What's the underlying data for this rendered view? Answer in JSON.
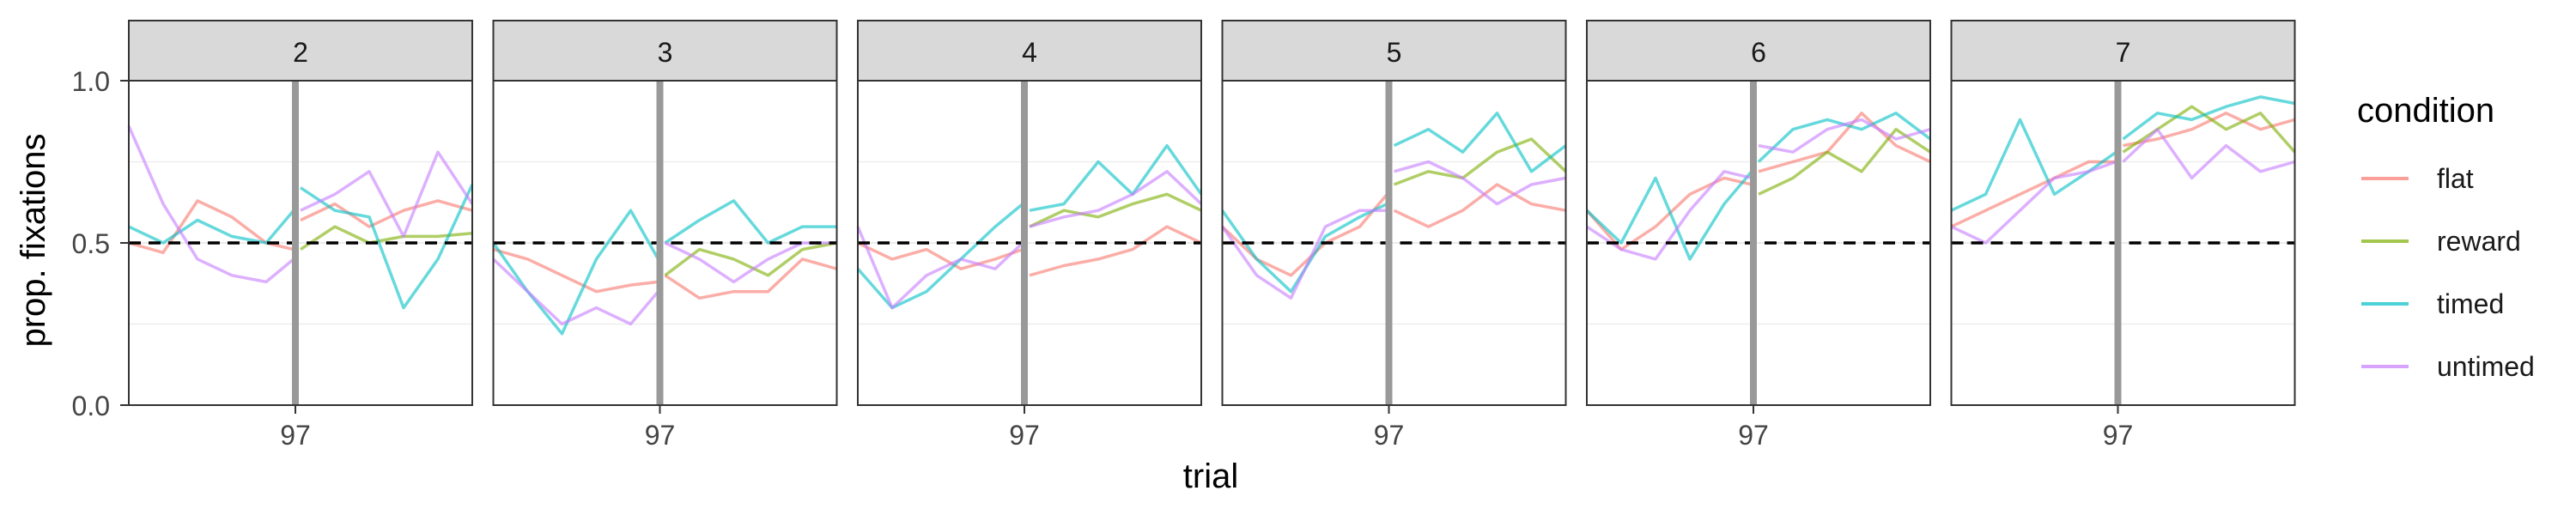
{
  "chart_data": {
    "type": "line",
    "xlabel": "trial",
    "ylabel": "prop. fixations",
    "ylim": [
      0,
      1
    ],
    "yticks": [
      0.0,
      0.5,
      1.0
    ],
    "ytick_labels": [
      "0.0",
      "0.5",
      "1.0"
    ],
    "xtick_labels": [
      "97"
    ],
    "xlim": [
      0,
      200
    ],
    "reference_line": {
      "y": 0.5,
      "style": "dashed"
    },
    "vertical_marker": {
      "x": 97
    },
    "gap_at": 97,
    "grid": true,
    "legend": {
      "title": "condition",
      "placement": "right"
    },
    "colors": {
      "flat": "#f8766d",
      "reward": "#7cae00",
      "timed": "#00bfc4",
      "untimed": "#c77cff"
    },
    "panels": [
      {
        "label": "2",
        "series": [
          {
            "name": "flat",
            "x": [
              0,
              20,
              40,
              60,
              80,
              96,
              100,
              120,
              140,
              160,
              180,
              200
            ],
            "y": [
              0.5,
              0.47,
              0.63,
              0.58,
              0.5,
              0.48,
              0.57,
              0.62,
              0.55,
              0.6,
              0.63,
              0.6
            ]
          },
          {
            "name": "reward",
            "x": [
              100,
              120,
              140,
              160,
              180,
              200
            ],
            "y": [
              0.48,
              0.55,
              0.5,
              0.52,
              0.52,
              0.53
            ]
          },
          {
            "name": "timed",
            "x": [
              0,
              20,
              40,
              60,
              80,
              96,
              100,
              120,
              140,
              160,
              180,
              200
            ],
            "y": [
              0.55,
              0.5,
              0.57,
              0.52,
              0.5,
              0.6,
              0.67,
              0.6,
              0.58,
              0.3,
              0.45,
              0.68
            ]
          },
          {
            "name": "untimed",
            "x": [
              0,
              20,
              40,
              60,
              80,
              96,
              100,
              120,
              140,
              160,
              180,
              200
            ],
            "y": [
              0.86,
              0.62,
              0.45,
              0.4,
              0.38,
              0.45,
              0.6,
              0.65,
              0.72,
              0.52,
              0.78,
              0.62
            ]
          }
        ]
      },
      {
        "label": "3",
        "series": [
          {
            "name": "flat",
            "x": [
              0,
              20,
              40,
              60,
              80,
              96,
              100,
              120,
              140,
              160,
              180,
              200
            ],
            "y": [
              0.48,
              0.45,
              0.4,
              0.35,
              0.37,
              0.38,
              0.4,
              0.33,
              0.35,
              0.35,
              0.45,
              0.42
            ]
          },
          {
            "name": "reward",
            "x": [
              100,
              120,
              140,
              160,
              180,
              200
            ],
            "y": [
              0.4,
              0.48,
              0.45,
              0.4,
              0.48,
              0.5
            ]
          },
          {
            "name": "timed",
            "x": [
              0,
              20,
              40,
              60,
              80,
              96,
              100,
              120,
              140,
              160,
              180,
              200
            ],
            "y": [
              0.5,
              0.35,
              0.22,
              0.45,
              0.6,
              0.45,
              0.5,
              0.57,
              0.63,
              0.5,
              0.55,
              0.55
            ]
          },
          {
            "name": "untimed",
            "x": [
              0,
              20,
              40,
              60,
              80,
              96,
              100,
              120,
              140,
              160,
              180,
              200
            ],
            "y": [
              0.45,
              0.35,
              0.25,
              0.3,
              0.25,
              0.35,
              0.5,
              0.45,
              0.38,
              0.45,
              0.5,
              0.5
            ]
          }
        ]
      },
      {
        "label": "4",
        "series": [
          {
            "name": "flat",
            "x": [
              0,
              20,
              40,
              60,
              80,
              96,
              100,
              120,
              140,
              160,
              180,
              200
            ],
            "y": [
              0.5,
              0.45,
              0.48,
              0.42,
              0.45,
              0.48,
              0.4,
              0.43,
              0.45,
              0.48,
              0.55,
              0.5
            ]
          },
          {
            "name": "reward",
            "x": [
              100,
              120,
              140,
              160,
              180,
              200
            ],
            "y": [
              0.55,
              0.6,
              0.58,
              0.62,
              0.65,
              0.6
            ]
          },
          {
            "name": "timed",
            "x": [
              0,
              20,
              40,
              60,
              80,
              96,
              100,
              120,
              140,
              160,
              180,
              200
            ],
            "y": [
              0.42,
              0.3,
              0.35,
              0.45,
              0.55,
              0.62,
              0.6,
              0.62,
              0.75,
              0.65,
              0.8,
              0.65
            ]
          },
          {
            "name": "untimed",
            "x": [
              0,
              20,
              40,
              60,
              80,
              96,
              100,
              120,
              140,
              160,
              180,
              200
            ],
            "y": [
              0.55,
              0.3,
              0.4,
              0.45,
              0.42,
              0.5,
              0.55,
              0.58,
              0.6,
              0.65,
              0.72,
              0.62
            ]
          }
        ]
      },
      {
        "label": "5",
        "series": [
          {
            "name": "flat",
            "x": [
              0,
              20,
              40,
              60,
              80,
              96,
              100,
              120,
              140,
              160,
              180,
              200
            ],
            "y": [
              0.55,
              0.45,
              0.4,
              0.5,
              0.55,
              0.65,
              0.6,
              0.55,
              0.6,
              0.68,
              0.62,
              0.6
            ]
          },
          {
            "name": "reward",
            "x": [
              100,
              120,
              140,
              160,
              180,
              200
            ],
            "y": [
              0.68,
              0.72,
              0.7,
              0.78,
              0.82,
              0.72
            ]
          },
          {
            "name": "timed",
            "x": [
              0,
              20,
              40,
              60,
              80,
              96,
              100,
              120,
              140,
              160,
              180,
              200
            ],
            "y": [
              0.6,
              0.45,
              0.35,
              0.52,
              0.58,
              0.62,
              0.8,
              0.85,
              0.78,
              0.9,
              0.72,
              0.8
            ]
          },
          {
            "name": "untimed",
            "x": [
              0,
              20,
              40,
              60,
              80,
              96,
              100,
              120,
              140,
              160,
              180,
              200
            ],
            "y": [
              0.55,
              0.4,
              0.33,
              0.55,
              0.6,
              0.6,
              0.72,
              0.75,
              0.7,
              0.62,
              0.68,
              0.7
            ]
          }
        ]
      },
      {
        "label": "6",
        "series": [
          {
            "name": "flat",
            "x": [
              0,
              20,
              40,
              60,
              80,
              96,
              100,
              120,
              140,
              160,
              180,
              200
            ],
            "y": [
              0.6,
              0.48,
              0.55,
              0.65,
              0.7,
              0.68,
              0.72,
              0.75,
              0.78,
              0.9,
              0.8,
              0.75
            ]
          },
          {
            "name": "reward",
            "x": [
              100,
              120,
              140,
              160,
              180,
              200
            ],
            "y": [
              0.65,
              0.7,
              0.78,
              0.72,
              0.85,
              0.78
            ]
          },
          {
            "name": "timed",
            "x": [
              0,
              20,
              40,
              60,
              80,
              96,
              100,
              120,
              140,
              160,
              180,
              200
            ],
            "y": [
              0.6,
              0.5,
              0.7,
              0.45,
              0.62,
              0.72,
              0.75,
              0.85,
              0.88,
              0.85,
              0.9,
              0.82
            ]
          },
          {
            "name": "untimed",
            "x": [
              0,
              20,
              40,
              60,
              80,
              96,
              100,
              120,
              140,
              160,
              180,
              200
            ],
            "y": [
              0.55,
              0.48,
              0.45,
              0.6,
              0.72,
              0.7,
              0.8,
              0.78,
              0.85,
              0.88,
              0.82,
              0.85
            ]
          }
        ]
      },
      {
        "label": "7",
        "series": [
          {
            "name": "flat",
            "x": [
              0,
              20,
              40,
              60,
              80,
              96,
              100,
              120,
              140,
              160,
              180,
              200
            ],
            "y": [
              0.55,
              0.6,
              0.65,
              0.7,
              0.75,
              0.75,
              0.8,
              0.82,
              0.85,
              0.9,
              0.85,
              0.88
            ]
          },
          {
            "name": "reward",
            "x": [
              100,
              120,
              140,
              160,
              180,
              200
            ],
            "y": [
              0.78,
              0.85,
              0.92,
              0.85,
              0.9,
              0.78
            ]
          },
          {
            "name": "timed",
            "x": [
              0,
              20,
              40,
              60,
              80,
              96,
              100,
              120,
              140,
              160,
              180,
              200
            ],
            "y": [
              0.6,
              0.65,
              0.88,
              0.65,
              0.72,
              0.78,
              0.82,
              0.9,
              0.88,
              0.92,
              0.95,
              0.93
            ]
          },
          {
            "name": "untimed",
            "x": [
              0,
              20,
              40,
              60,
              80,
              96,
              100,
              120,
              140,
              160,
              180,
              200
            ],
            "y": [
              0.55,
              0.5,
              0.6,
              0.7,
              0.72,
              0.75,
              0.75,
              0.85,
              0.7,
              0.8,
              0.72,
              0.75
            ]
          }
        ]
      }
    ]
  }
}
